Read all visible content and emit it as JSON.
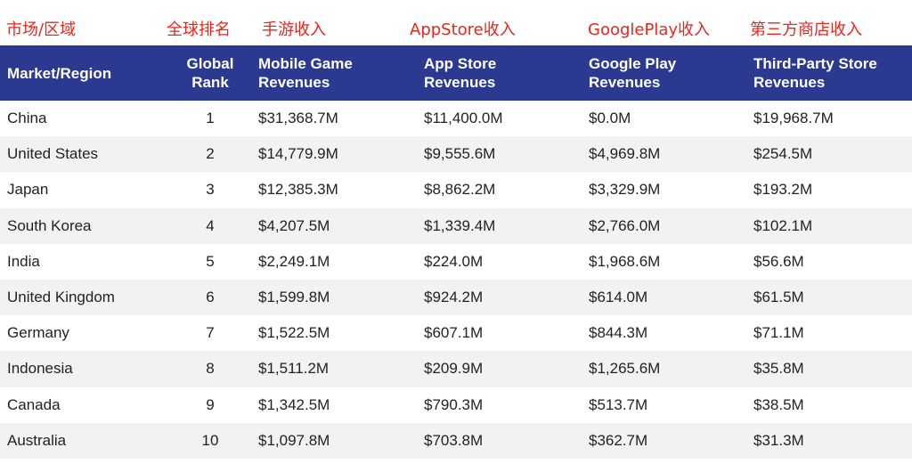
{
  "cn_labels": [
    "市场/区域",
    "全球排名",
    "手游收入",
    "AppStore收入",
    "GooglePlay收入",
    "第三方商店收入"
  ],
  "headers": [
    "Market/Region",
    "Global\nRank",
    "Mobile Game\nRevenues",
    "App Store\nRevenues",
    "Google Play\nRevenues",
    "Third-Party Store\nRevenues"
  ],
  "colors": {
    "header_bg": "#2b3990",
    "header_text": "#ffffff",
    "annotation": "#e8261c",
    "stripe": "#f2f2f2"
  },
  "chart_data": {
    "type": "table",
    "columns": [
      "Market/Region",
      "Global Rank",
      "Mobile Game Revenues",
      "App Store Revenues",
      "Google Play Revenues",
      "Third-Party Store Revenues"
    ],
    "rows": [
      [
        "China",
        "1",
        "$31,368.7M",
        "$11,400.0M",
        "$0.0M",
        "$19,968.7M"
      ],
      [
        "United States",
        "2",
        "$14,779.9M",
        "$9,555.6M",
        "$4,969.8M",
        "$254.5M"
      ],
      [
        "Japan",
        "3",
        "$12,385.3M",
        "$8,862.2M",
        "$3,329.9M",
        "$193.2M"
      ],
      [
        "South Korea",
        "4",
        "$4,207.5M",
        "$1,339.4M",
        "$2,766.0M",
        "$102.1M"
      ],
      [
        "India",
        "5",
        "$2,249.1M",
        "$224.0M",
        "$1,968.6M",
        "$56.6M"
      ],
      [
        "United Kingdom",
        "6",
        "$1,599.8M",
        "$924.2M",
        "$614.0M",
        "$61.5M"
      ],
      [
        "Germany",
        "7",
        "$1,522.5M",
        "$607.1M",
        "$844.3M",
        "$71.1M"
      ],
      [
        "Indonesia",
        "8",
        "$1,511.2M",
        "$209.9M",
        "$1,265.6M",
        "$35.8M"
      ],
      [
        "Canada",
        "9",
        "$1,342.5M",
        "$790.3M",
        "$513.7M",
        "$38.5M"
      ],
      [
        "Australia",
        "10",
        "$1,097.8M",
        "$703.8M",
        "$362.7M",
        "$31.3M"
      ]
    ]
  }
}
